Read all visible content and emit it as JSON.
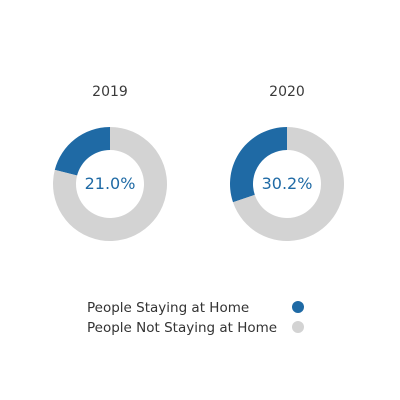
{
  "chart_data": {
    "type": "pie",
    "charts": [
      {
        "year": "2019",
        "value_label": "21.0%",
        "slices": [
          {
            "name": "People Staying at Home",
            "value": 21.0
          },
          {
            "name": "People Not Staying at Home",
            "value": 79.0
          }
        ]
      },
      {
        "year": "2020",
        "value_label": "30.2%",
        "slices": [
          {
            "name": "People Staying at Home",
            "value": 30.2
          },
          {
            "name": "People Not Staying at Home",
            "value": 69.8
          }
        ]
      }
    ],
    "legend": [
      {
        "label": "People Staying at Home",
        "color": "#1f6aa5"
      },
      {
        "label": "People Not Staying at Home",
        "color": "#d3d3d3"
      }
    ],
    "legend_position": "bottom"
  },
  "colors": {
    "highlight": "#1f6aa5",
    "rest": "#d3d3d3",
    "center_text": "#1f6aa5",
    "text": "#333333"
  }
}
